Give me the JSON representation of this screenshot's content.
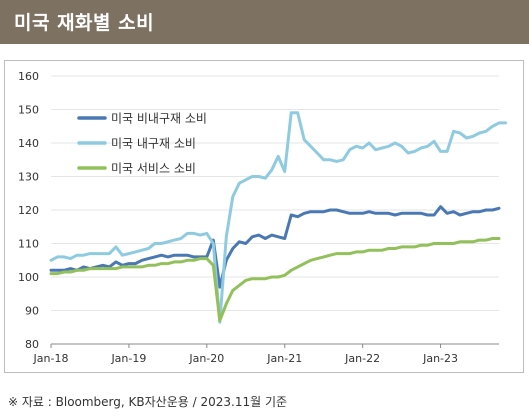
{
  "header": {
    "title": "미국 재화별 소비"
  },
  "footer": {
    "source": "※ 자료 : Bloomberg, KB자산운용 / 2023.11월 기준"
  },
  "chart_data": {
    "type": "line",
    "ylim": [
      80,
      160
    ],
    "yticks": [
      80,
      90,
      100,
      110,
      120,
      130,
      140,
      150,
      160
    ],
    "xticks": [
      {
        "label": "Jan-18",
        "x": 0
      },
      {
        "label": "Jan-19",
        "x": 12
      },
      {
        "label": "Jan-20",
        "x": 24
      },
      {
        "label": "Jan-21",
        "x": 36
      },
      {
        "label": "Jan-22",
        "x": 48
      },
      {
        "label": "Jan-23",
        "x": 60
      }
    ],
    "legend": [
      "미국 비내구재 소비",
      "미국 내구재 소비",
      "미국 서비스 소비"
    ],
    "series": [
      {
        "name": "미국 비내구재 소비",
        "color": "#4a78b4",
        "values": [
          102,
          102,
          102,
          102.5,
          102,
          103,
          102.5,
          103,
          103.5,
          103,
          104.5,
          103.5,
          104,
          104,
          105,
          105.5,
          106,
          106.5,
          106,
          106.5,
          106.5,
          106.5,
          106,
          106,
          106,
          111,
          97,
          105,
          108.5,
          110.5,
          110,
          112,
          112.5,
          111.5,
          112.5,
          112,
          111.5,
          118.5,
          118,
          119,
          119.5,
          119.5,
          119.5,
          120,
          120,
          119.5,
          119,
          119,
          119,
          119.5,
          119,
          119,
          119,
          118.5,
          119,
          119,
          119,
          119,
          118.5,
          118.5,
          121,
          119,
          119.5,
          118.5,
          119,
          119.5,
          119.5,
          120,
          120,
          120.5
        ]
      },
      {
        "name": "미국 내구재 소비",
        "color": "#8ecbe0",
        "values": [
          105,
          106,
          106,
          105.5,
          106.5,
          106.5,
          107,
          107,
          107,
          107,
          109,
          106.5,
          107,
          107.5,
          108,
          108.5,
          110,
          110,
          110.5,
          111,
          111.5,
          113,
          113,
          112.5,
          113,
          110,
          86.5,
          112,
          124,
          128,
          129,
          130,
          130,
          129.5,
          132,
          136,
          131.5,
          149,
          149,
          141,
          139,
          137,
          135,
          135,
          134.5,
          135,
          138,
          139,
          138.5,
          140,
          138,
          138.5,
          139,
          140,
          139,
          137,
          137.5,
          138.5,
          139,
          140.5,
          137.5,
          137.5,
          143.5,
          143,
          141.5,
          142,
          143,
          143.5,
          145,
          146,
          146
        ]
      },
      {
        "name": "미국 서비스 소비",
        "color": "#92c05a",
        "values": [
          101,
          101,
          101.5,
          101.5,
          102,
          102,
          102.5,
          102.5,
          102.5,
          102.5,
          102.5,
          103,
          103,
          103,
          103,
          103.5,
          103.5,
          104,
          104,
          104.5,
          104.5,
          105,
          105,
          105.5,
          105.5,
          103.5,
          87,
          92,
          96,
          97.5,
          99,
          99.5,
          99.5,
          99.5,
          100,
          100,
          100.5,
          102,
          103,
          104,
          105,
          105.5,
          106,
          106.5,
          107,
          107,
          107,
          107.5,
          107.5,
          108,
          108,
          108,
          108.5,
          108.5,
          109,
          109,
          109,
          109.5,
          109.5,
          110,
          110,
          110,
          110,
          110.5,
          110.5,
          110.5,
          111,
          111,
          111.5,
          111.5
        ]
      }
    ]
  }
}
